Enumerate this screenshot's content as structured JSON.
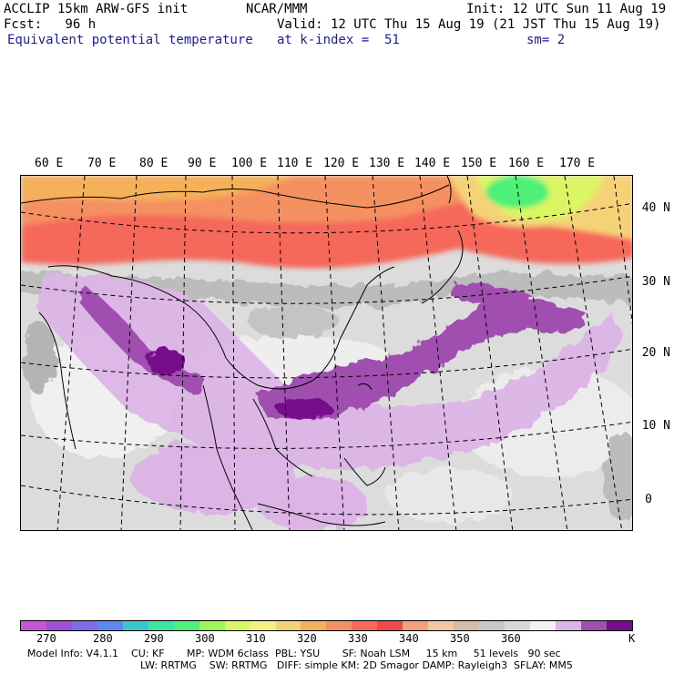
{
  "header": {
    "model": "ACCLIP 15km ARW-GFS init",
    "org": "NCAR/MMM",
    "init": "Init: 12 UTC Sun 11 Aug 19",
    "fcst": "Fcst:   96 h",
    "valid": "Valid: 12 UTC Thu 15 Aug 19 (21 JST Thu 15 Aug 19)",
    "field": "Equivalent potential temperature",
    "level": "at k-index =  51",
    "smooth": "sm= 2"
  },
  "map": {
    "lon_labels": [
      "60 E",
      "70 E",
      "80 E",
      "90 E",
      "100 E",
      "110 E",
      "120 E",
      "130 E",
      "140 E",
      "150 E",
      "160 E",
      "170 E"
    ],
    "lat_labels": [
      "40 N",
      "30 N",
      "20 N",
      "10 N",
      "0"
    ]
  },
  "colorbar": {
    "colors": [
      "#c855d8",
      "#a050d8",
      "#7c6ee6",
      "#5a8af0",
      "#3cc8c8",
      "#3ce6a0",
      "#50f078",
      "#a0f55a",
      "#dcf564",
      "#f5f082",
      "#f5d278",
      "#f5b05a",
      "#f59060",
      "#f5685a",
      "#ee4a4a",
      "#f5a07a",
      "#f0c8a8",
      "#d2bea8",
      "#c8c8c8",
      "#d8d8d8",
      "#f2f2f2",
      "#dcb4e6",
      "#a050b0",
      "#780a8c"
    ],
    "ticks": [
      "270",
      "280",
      "290",
      "300",
      "310",
      "320",
      "330",
      "340",
      "350",
      "360",
      "K"
    ]
  },
  "footer": {
    "line1": "Model Info: V4.1.1    CU: KF       MP: WDM 6class  PBL: YSU       SF: Noah LSM     15 km     51 levels   90 sec",
    "line2": "LW: RRTMG    SW: RRTMG   DIFF: simple KM: 2D Smagor DAMP: Rayleigh3  SFLAY: MM5"
  }
}
